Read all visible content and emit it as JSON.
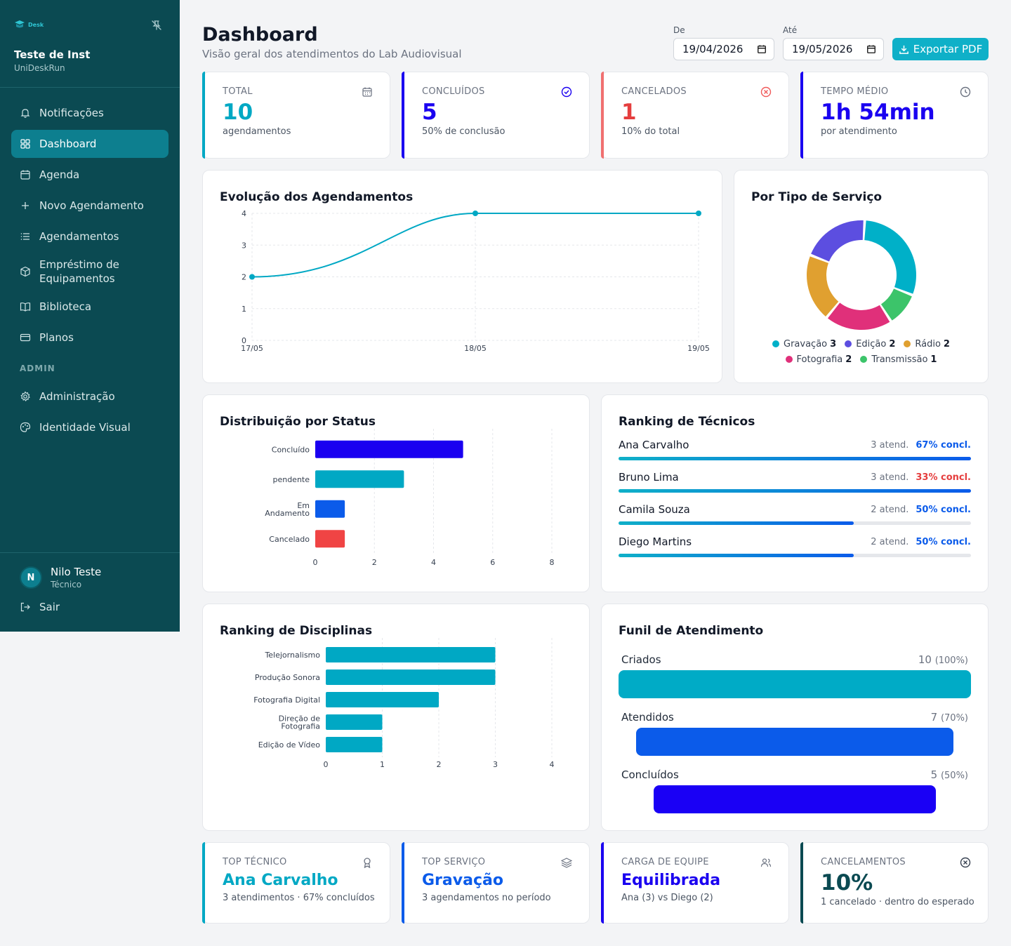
{
  "sidebar": {
    "logo_text": "Desk",
    "org_name": "Teste de Inst",
    "org_sub": "UniDeskRun",
    "items": [
      {
        "label": "Notificações",
        "icon": "bell-icon"
      },
      {
        "label": "Dashboard",
        "icon": "dashboard-icon",
        "active": true
      },
      {
        "label": "Agenda",
        "icon": "calendar-icon"
      },
      {
        "label": "Novo Agendamento",
        "icon": "plus-icon"
      },
      {
        "label": "Agendamentos",
        "icon": "list-icon"
      },
      {
        "label": "Empréstimo de Equipamentos",
        "icon": "package-icon"
      },
      {
        "label": "Biblioteca",
        "icon": "book-icon"
      },
      {
        "label": "Planos",
        "icon": "card-icon"
      }
    ],
    "admin_section": "ADMIN",
    "admin_items": [
      {
        "label": "Administração",
        "icon": "gear-icon"
      },
      {
        "label": "Identidade Visual",
        "icon": "palette-icon"
      }
    ],
    "user": {
      "initial": "N",
      "name": "Nilo Teste",
      "role": "Técnico"
    },
    "logout_label": "Sair"
  },
  "header": {
    "title": "Dashboard",
    "subtitle": "Visão geral dos atendimentos do Lab Audiovisual",
    "from_label": "De",
    "from_value": "19/04/2026",
    "to_label": "Até",
    "to_value": "19/05/2026",
    "export_label": "Exportar PDF"
  },
  "stats_top": [
    {
      "label": "TOTAL",
      "value": "10",
      "sub": "agendamentos",
      "color": "#00a8c4",
      "icon": "calendar-icon"
    },
    {
      "label": "CONCLUÍDOS",
      "value": "5",
      "sub": "50% de conclusão",
      "color": "#1a00f0",
      "icon": "check-circle-icon"
    },
    {
      "label": "CANCELADOS",
      "value": "1",
      "sub": "10% do total",
      "color": "#e53e3e",
      "icon": "x-circle-icon"
    },
    {
      "label": "TEMPO MÉDIO",
      "value": "1h 54min",
      "sub": "por atendimento",
      "color": "#1a00f0",
      "icon": "clock-icon"
    }
  ],
  "stats_bottom": [
    {
      "label": "TOP TÉCNICO",
      "value": "Ana Carvalho",
      "sub": "3 atendimentos · 67% concluídos",
      "color": "#00a8c4",
      "icon": "award-icon"
    },
    {
      "label": "TOP SERVIÇO",
      "value": "Gravação",
      "sub": "3 agendamentos no período",
      "color": "#0b5bea",
      "icon": "layers-icon"
    },
    {
      "label": "CARGA DE EQUIPE",
      "value": "Equilibrada",
      "sub": "Ana (3) vs Diego (2)",
      "color": "#1a00f0",
      "icon": "users-icon"
    },
    {
      "label": "CANCELAMENTOS",
      "value": "10%",
      "sub": "1 cancelado · dentro do esperado",
      "color": "#0b4a52",
      "icon": "x-circle-icon"
    }
  ],
  "charts": {
    "evolucao_title": "Evolução dos Agendamentos",
    "tipo_title": "Por Tipo de Serviço",
    "status_title": "Distribuição por Status",
    "tecnicos_title": "Ranking de Técnicos",
    "disciplinas_title": "Ranking de Disciplinas",
    "funil_title": "Funil de Atendimento"
  },
  "chart_data": [
    {
      "type": "line",
      "title": "Evolução dos Agendamentos",
      "x": [
        "17/05",
        "18/05",
        "19/05"
      ],
      "values": [
        2,
        4,
        4
      ],
      "ylim": [
        0,
        4
      ],
      "yticks": [
        0,
        1,
        2,
        3,
        4
      ],
      "color": "#00a8c4",
      "grid": true
    },
    {
      "type": "pie",
      "title": "Por Tipo de Serviço",
      "donut": true,
      "legend": "bottom",
      "slices": [
        {
          "name": "Gravação",
          "value": 3,
          "color": "#00b0c8"
        },
        {
          "name": "Transmissão",
          "value": 1,
          "color": "#3cc46a"
        },
        {
          "name": "Fotografia",
          "value": 2,
          "color": "#e0307a"
        },
        {
          "name": "Rádio",
          "value": 2,
          "color": "#e0a030"
        },
        {
          "name": "Edição",
          "value": 2,
          "color": "#5c4ee0"
        }
      ],
      "legend_order": [
        "Gravação",
        "Edição",
        "Rádio",
        "Fotografia",
        "Transmissão"
      ]
    },
    {
      "type": "bar",
      "orientation": "horizontal",
      "title": "Distribuição por Status",
      "categories": [
        "Concluído",
        "pendente",
        "Em Andamento",
        "Cancelado"
      ],
      "values": [
        5,
        3,
        1,
        1
      ],
      "colors": [
        "#1a00f0",
        "#00a8c4",
        "#0b5bea",
        "#f04444"
      ],
      "xlim": [
        0,
        8
      ],
      "xticks": [
        0,
        2,
        4,
        6,
        8
      ],
      "grid": true
    },
    {
      "type": "bar",
      "orientation": "horizontal",
      "title": "Ranking de Disciplinas",
      "categories": [
        "Telejornalismo",
        "Produção Sonora",
        "Fotografia Digital",
        "Direção de Fotografia",
        "Edição de Vídeo"
      ],
      "values": [
        3,
        3,
        2,
        1,
        1
      ],
      "colors": [
        "#00a8c4",
        "#00a8c4",
        "#00a8c4",
        "#00a8c4",
        "#00a8c4"
      ],
      "xlim": [
        0,
        4
      ],
      "xticks": [
        0,
        1,
        2,
        3,
        4
      ],
      "grid": true
    }
  ],
  "tecnicos": [
    {
      "name": "Ana Carvalho",
      "atend": "3 atend.",
      "concl": "67% concl.",
      "concl_color": "#0b5bea",
      "progress": 1.0
    },
    {
      "name": "Bruno Lima",
      "atend": "3 atend.",
      "concl": "33% concl.",
      "concl_color": "#e53e3e",
      "progress": 1.0
    },
    {
      "name": "Camila Souza",
      "atend": "2 atend.",
      "concl": "50% concl.",
      "concl_color": "#0b5bea",
      "progress": 0.667
    },
    {
      "name": "Diego Martins",
      "atend": "2 atend.",
      "concl": "50% concl.",
      "concl_color": "#0b5bea",
      "progress": 0.667
    }
  ],
  "funil": [
    {
      "label": "Criados",
      "value": "10",
      "pct": "(100%)",
      "fraction": 1.0,
      "color": "#00abc6"
    },
    {
      "label": "Atendidos",
      "value": "7",
      "pct": "(70%)",
      "fraction": 0.9,
      "color": "#0b5bea"
    },
    {
      "label": "Concluídos",
      "value": "5",
      "pct": "(50%)",
      "fraction": 0.8,
      "color": "#1a00f5"
    }
  ]
}
